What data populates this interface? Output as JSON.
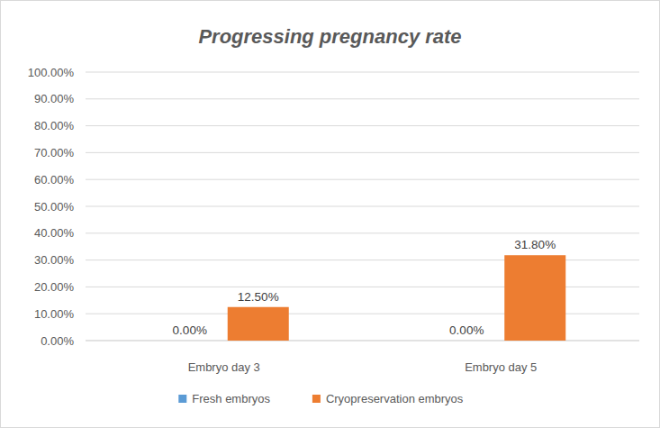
{
  "chart_data": {
    "type": "bar",
    "title": "Progressing pregnancy rate",
    "categories": [
      "Embryo day 3",
      "Embryo day 5"
    ],
    "series": [
      {
        "name": "Fresh embryos",
        "color": "#5b9bd5",
        "values": [
          0,
          0
        ],
        "value_labels": [
          "0.00%",
          "0.00%"
        ]
      },
      {
        "name": "Cryopreservation embryos",
        "color": "#ed7d31",
        "values": [
          12.5,
          31.8
        ],
        "value_labels": [
          "12.50%",
          "31.80%"
        ]
      }
    ],
    "ylim": [
      0,
      100
    ],
    "yticks": [
      {
        "value": 0,
        "label": "0.00%"
      },
      {
        "value": 10,
        "label": "10.00%"
      },
      {
        "value": 20,
        "label": "20.00%"
      },
      {
        "value": 30,
        "label": "30.00%"
      },
      {
        "value": 40,
        "label": "40.00%"
      },
      {
        "value": 50,
        "label": "50.00%"
      },
      {
        "value": 60,
        "label": "60.00%"
      },
      {
        "value": 70,
        "label": "70.00%"
      },
      {
        "value": 80,
        "label": "80.00%"
      },
      {
        "value": 90,
        "label": "90.00%"
      },
      {
        "value": 100,
        "label": "100.00%"
      }
    ],
    "grid": true,
    "legend": "bottom",
    "data_labels": true
  }
}
